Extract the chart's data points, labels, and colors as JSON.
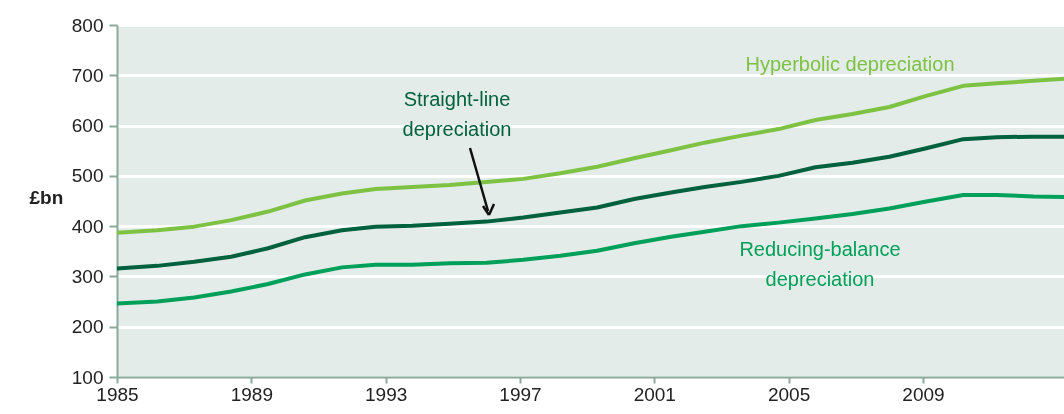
{
  "chart_data": {
    "type": "line",
    "ylabel": "£bn",
    "x": [
      1985,
      1986.2,
      1987.3,
      1988.4,
      1989.5,
      1990.6,
      1991.7,
      1992.7,
      1993.8,
      1994.9,
      1996.0,
      1997.1,
      1998.2,
      1999.3,
      2000.4,
      2001.5,
      2002.5,
      2003.6,
      2004.7,
      2005.8,
      2006.9,
      2008.0,
      2009.1,
      2010.2,
      2011.2,
      2012.3,
      2013.2
    ],
    "series": [
      {
        "name": "Hyperbolic depreciation",
        "color": "#7dc242",
        "values": [
          387,
          392,
          399,
          412,
          429,
          451,
          465,
          474,
          478,
          482,
          488,
          494,
          505,
          518,
          535,
          551,
          566,
          580,
          593,
          611,
          623,
          637,
          659,
          679,
          684,
          689,
          693
        ]
      },
      {
        "name": "Straight-line\ndepreciation",
        "color": "#00613e",
        "values": [
          316,
          321,
          329,
          339,
          356,
          378,
          392,
          399,
          401,
          405,
          409,
          417,
          427,
          437,
          454,
          467,
          478,
          488,
          500,
          517,
          526,
          538,
          555,
          573,
          577,
          578,
          578
        ]
      },
      {
        "name": "Reducing-balance\ndepreciation",
        "color": "#00a05a",
        "values": [
          246,
          250,
          258,
          270,
          285,
          304,
          318,
          323,
          323,
          326,
          327,
          333,
          341,
          351,
          366,
          379,
          389,
          400,
          407,
          415,
          424,
          435,
          449,
          462,
          462,
          459,
          458
        ]
      }
    ],
    "xlim": [
      1985,
      2013.2
    ],
    "xticks": [
      1985,
      1989,
      1993,
      1997,
      2001,
      2005,
      2009
    ],
    "ylim": [
      100,
      800
    ],
    "yticks": [
      100,
      200,
      300,
      400,
      500,
      600,
      700,
      800
    ],
    "grid": "y",
    "marker": "none",
    "line_style": "solid"
  }
}
